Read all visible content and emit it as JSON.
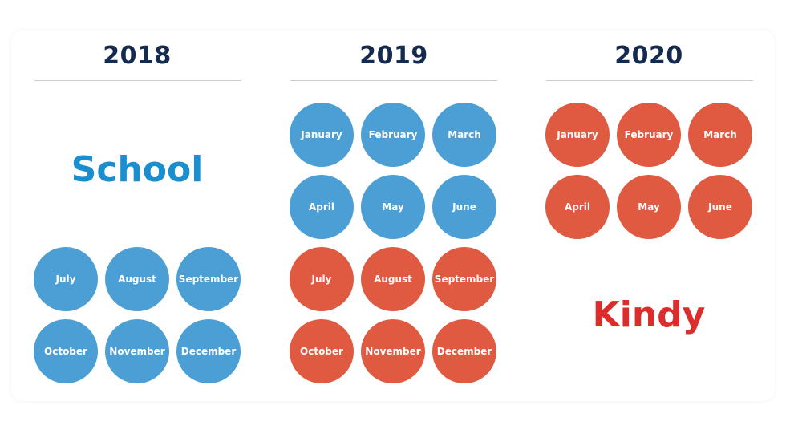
{
  "colors": {
    "school": "#4b9fd4",
    "kindy": "#e05a41",
    "heading": "#142a4f",
    "school_label": "#1a8fcf",
    "kindy_label": "#dd2c2c"
  },
  "years": [
    {
      "label": "2018"
    },
    {
      "label": "2019"
    },
    {
      "label": "2020"
    }
  ],
  "labels": {
    "school": "School",
    "kindy": "Kindy"
  },
  "months": [
    "January",
    "February",
    "March",
    "April",
    "May",
    "June",
    "July",
    "August",
    "September",
    "October",
    "November",
    "December"
  ]
}
